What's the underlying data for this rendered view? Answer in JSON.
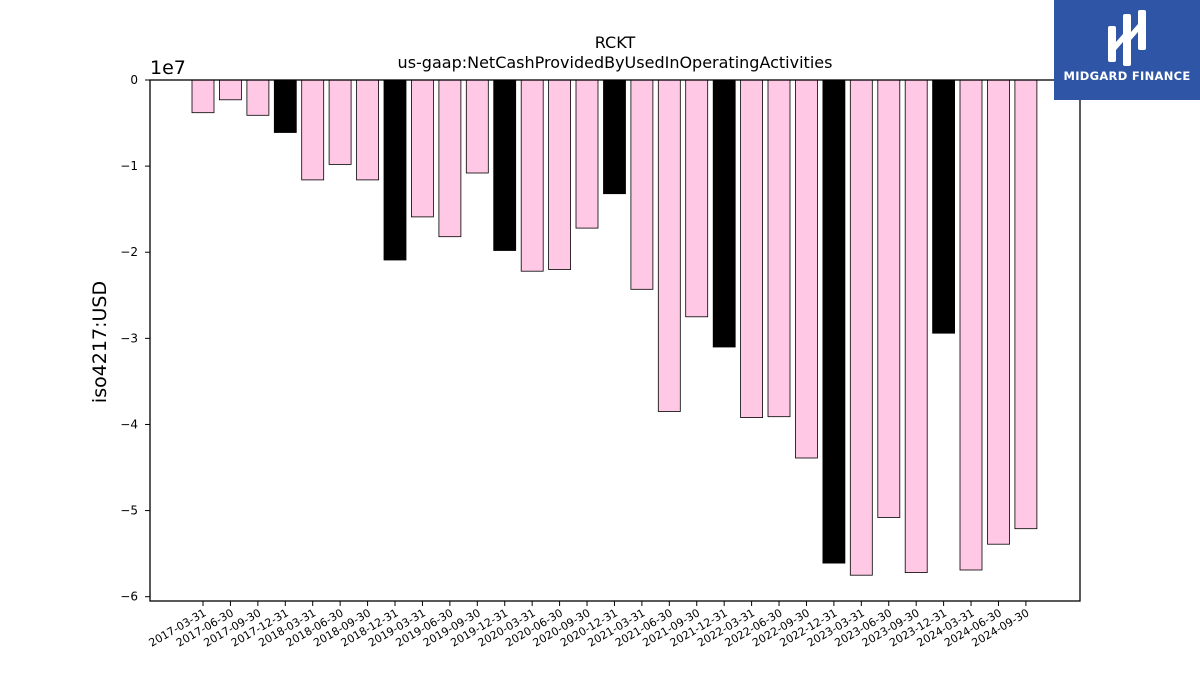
{
  "logo": {
    "text": "MIDGARD FINANCE",
    "icon": "midgard-logo-icon",
    "background": "#2f56a6"
  },
  "chart_data": {
    "type": "bar",
    "title": "RCKT",
    "subtitle": "us-gaap:NetCashProvidedByUsedInOperatingActivities",
    "ylabel": "iso4217:USD",
    "xlabel": "",
    "offset_label": "1e7",
    "ylim": [
      -60500000,
      0
    ],
    "yticks": [
      0,
      -10000000,
      -20000000,
      -30000000,
      -40000000,
      -50000000,
      -60000000
    ],
    "ytick_labels": [
      "0",
      "−1",
      "−2",
      "−3",
      "−4",
      "−5",
      "−6"
    ],
    "grid": false,
    "colors": {
      "quarter": "#ffc8e4",
      "year_end": "#000000",
      "edge": "#000000"
    },
    "categories": [
      "2017-03-31",
      "2017-06-30",
      "2017-09-30",
      "2017-12-31",
      "2018-03-31",
      "2018-06-30",
      "2018-09-30",
      "2018-12-31",
      "2019-03-31",
      "2019-06-30",
      "2019-09-30",
      "2019-12-31",
      "2020-03-31",
      "2020-06-30",
      "2020-09-30",
      "2020-12-31",
      "2021-03-31",
      "2021-06-30",
      "2021-09-30",
      "2021-12-31",
      "2022-03-31",
      "2022-06-30",
      "2022-09-30",
      "2022-12-31",
      "2023-03-31",
      "2023-06-30",
      "2023-09-30",
      "2023-12-31",
      "2024-03-31",
      "2024-06-30",
      "2024-09-30"
    ],
    "values": [
      -3800000,
      -2300000,
      -4100000,
      -6100000,
      -11600000,
      -9800000,
      -11600000,
      -20900000,
      -15900000,
      -18200000,
      -10800000,
      -19800000,
      -22200000,
      -22000000,
      -17200000,
      -13200000,
      -24300000,
      -38500000,
      -27500000,
      -31000000,
      -39200000,
      -39100000,
      -43900000,
      -56100000,
      -57500000,
      -50800000,
      -57200000,
      -29400000,
      -56900000,
      -53900000,
      -52100000
    ],
    "year_end": [
      false,
      false,
      false,
      true,
      false,
      false,
      false,
      true,
      false,
      false,
      false,
      true,
      false,
      false,
      false,
      true,
      false,
      false,
      false,
      true,
      false,
      false,
      false,
      true,
      false,
      false,
      false,
      true,
      false,
      false,
      false
    ]
  }
}
